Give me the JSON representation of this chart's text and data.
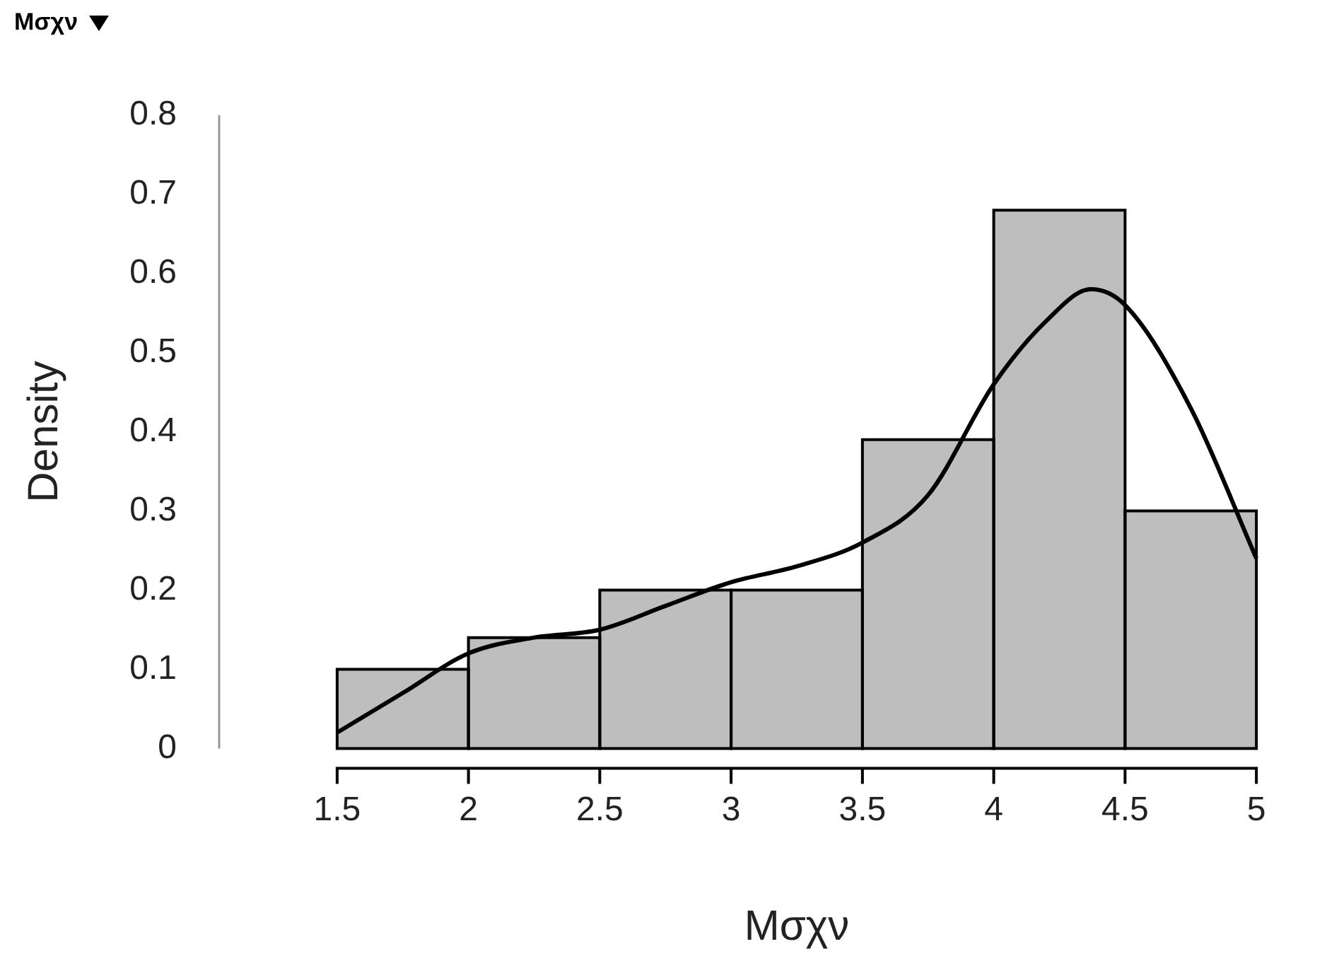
{
  "chart_data": {
    "type": "histogram",
    "title": "Mσχν",
    "xlabel": "Mσχν",
    "ylabel": "Density",
    "bins": [
      1.5,
      2,
      2.5,
      3,
      3.5,
      4,
      4.5,
      5
    ],
    "values": [
      0.1,
      0.14,
      0.2,
      0.2,
      0.39,
      0.68,
      0.3
    ],
    "color": "#bebebe",
    "series": [
      {
        "type": "line",
        "color": "#000000",
        "x": [
          1.5,
          1.75,
          2,
          2.25,
          2.5,
          2.75,
          3,
          3.25,
          3.5,
          3.75,
          4,
          4.2,
          4.37,
          4.5,
          4.75,
          5
        ],
        "values": [
          0.02,
          0.07,
          0.12,
          0.14,
          0.15,
          0.18,
          0.21,
          0.23,
          0.26,
          0.32,
          0.46,
          0.54,
          0.58,
          0.56,
          0.43,
          0.24
        ]
      }
    ],
    "xlim": [
      1.5,
      5
    ],
    "ylim": [
      0,
      0.8
    ],
    "xticks": [
      1.5,
      2,
      2.5,
      3,
      3.5,
      4,
      4.5,
      5
    ],
    "yticks": [
      0,
      0.1,
      0.2,
      0.3,
      0.4,
      0.5,
      0.6,
      0.7,
      0.8
    ],
    "marker": "none",
    "legend": false
  }
}
